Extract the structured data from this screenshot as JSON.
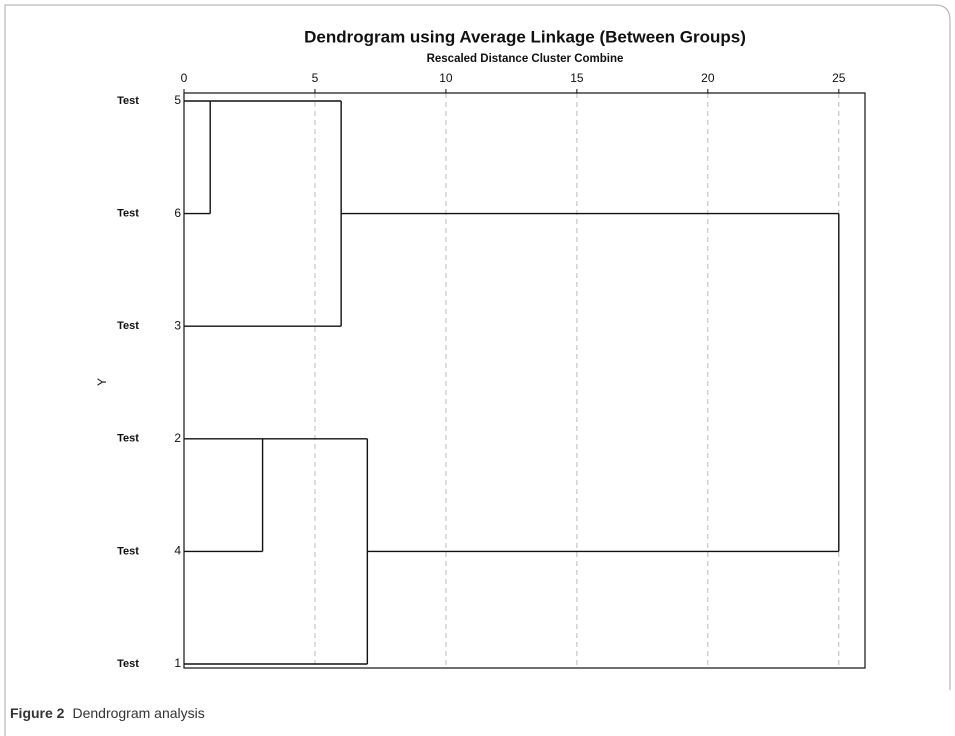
{
  "chart_data": {
    "type": "dendrogram",
    "title": "Dendrogram using Average Linkage (Between Groups)",
    "x_label": "Rescaled Distance Cluster Combine",
    "y_label": "Y",
    "leaves": [
      {
        "name": "Test",
        "case": 5
      },
      {
        "name": "Test",
        "case": 6
      },
      {
        "name": "Test",
        "case": 3
      },
      {
        "name": "Test",
        "case": 2
      },
      {
        "name": "Test",
        "case": 4
      },
      {
        "name": "Test",
        "case": 1
      }
    ],
    "merges": [
      {
        "members": [
          5,
          6
        ],
        "distance": 1
      },
      {
        "members": [
          5,
          6,
          3
        ],
        "distance": 6
      },
      {
        "members": [
          2,
          4
        ],
        "distance": 3
      },
      {
        "members": [
          2,
          4,
          1
        ],
        "distance": 7
      },
      {
        "members": [
          5,
          6,
          3,
          2,
          4,
          1
        ],
        "distance": 25
      }
    ],
    "xlim": [
      0,
      26
    ],
    "xticks": [
      0,
      5,
      10,
      15,
      20,
      25
    ],
    "grid": true,
    "color": "#111111"
  },
  "caption": {
    "label": "Figure 2",
    "text": "Dendrogram analysis"
  }
}
